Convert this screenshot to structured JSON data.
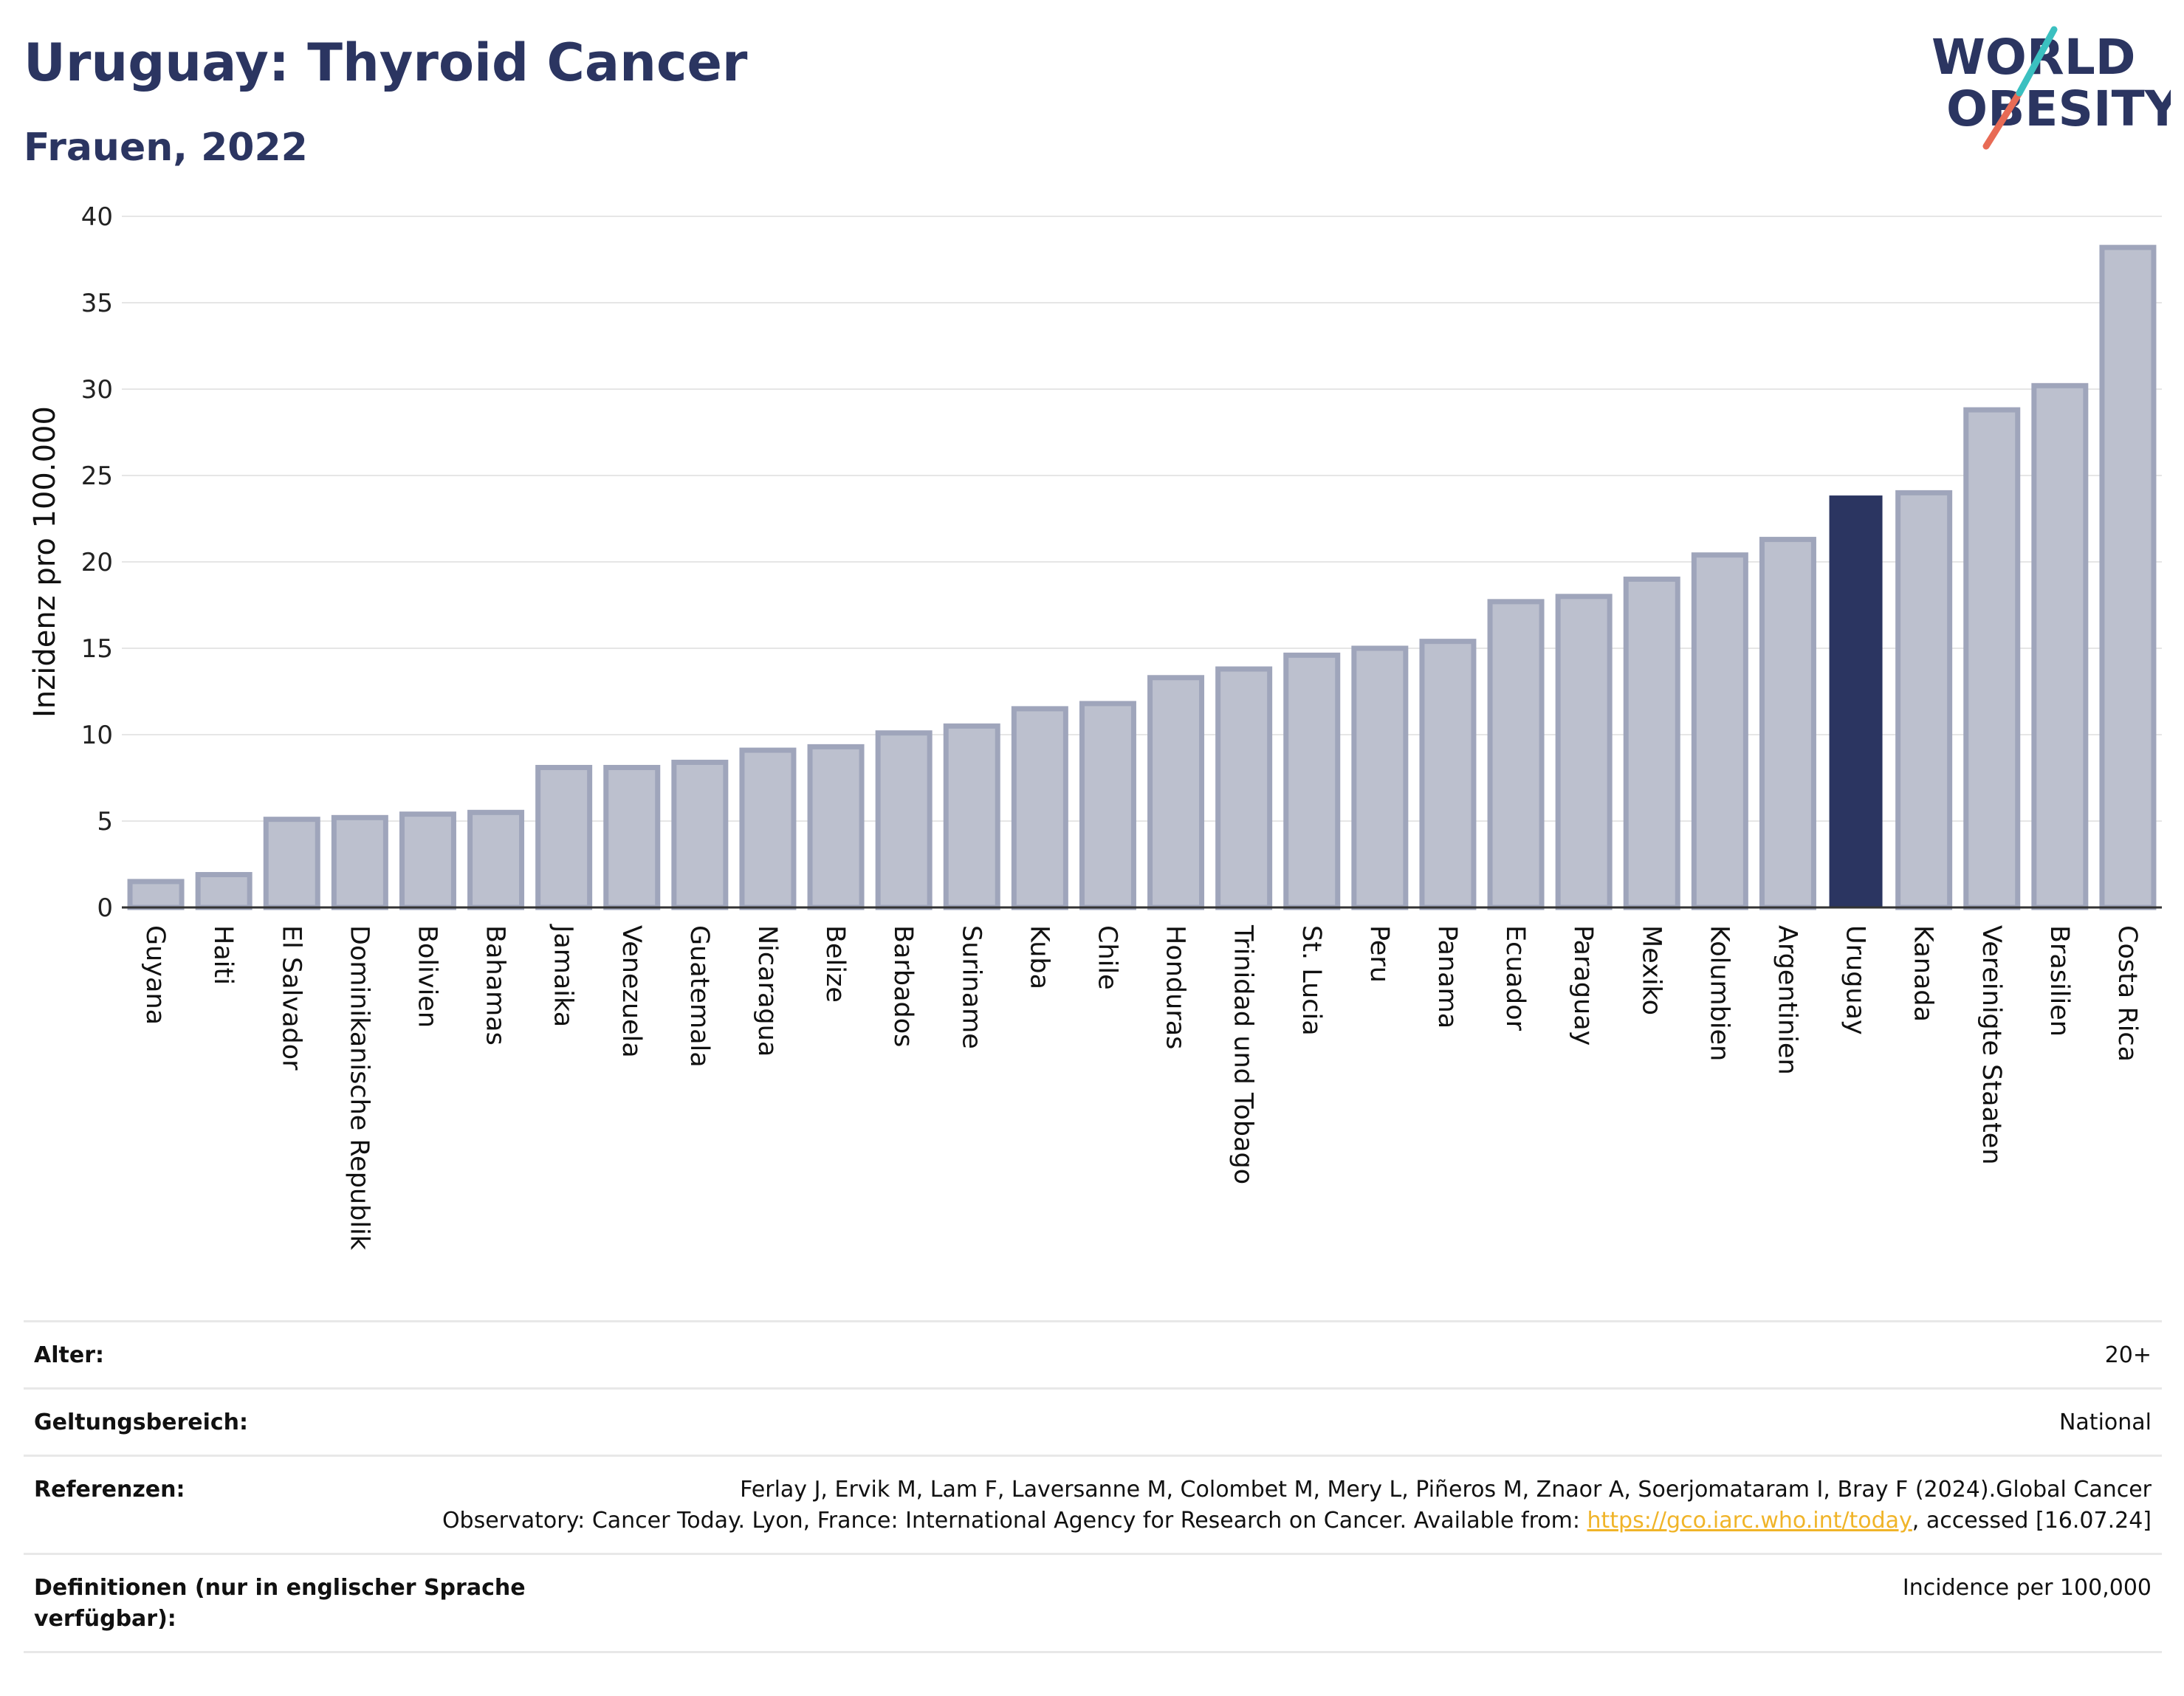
{
  "header": {
    "title": "Uruguay: Thyroid Cancer",
    "subtitle": "Frauen, 2022",
    "logo_line1": "WORLD",
    "logo_line2": "OBESITY"
  },
  "chart_data": {
    "type": "bar",
    "title": "Uruguay: Thyroid Cancer",
    "subtitle": "Frauen, 2022",
    "ylabel": "Inzidenz pro 100.000",
    "xlabel": "",
    "ylim": [
      0,
      40
    ],
    "yticks": [
      0,
      5,
      10,
      15,
      20,
      25,
      30,
      35,
      40
    ],
    "grid": true,
    "highlight": "Uruguay",
    "colors": {
      "bar": "#bcc0ce",
      "bar_border": "#9fa5bb",
      "highlight": "#2b3561"
    },
    "categories": [
      "Guyana",
      "Haiti",
      "El Salvador",
      "Dominikanische Republik",
      "Bolivien",
      "Bahamas",
      "Jamaika",
      "Venezuela",
      "Guatemala",
      "Nicaragua",
      "Belize",
      "Barbados",
      "Suriname",
      "Kuba",
      "Chile",
      "Honduras",
      "Trinidad und Tobago",
      "St. Lucia",
      "Peru",
      "Panama",
      "Ecuador",
      "Paraguay",
      "Mexiko",
      "Kolumbien",
      "Argentinien",
      "Uruguay",
      "Kanada",
      "Vereinigte Staaten",
      "Brasilien",
      "Costa Rica"
    ],
    "values": [
      1.5,
      1.9,
      5.1,
      5.2,
      5.4,
      5.5,
      8.1,
      8.1,
      8.4,
      9.1,
      9.3,
      10.1,
      10.5,
      11.5,
      11.8,
      13.3,
      13.8,
      14.6,
      15.0,
      15.4,
      17.7,
      18.0,
      19.0,
      20.4,
      21.3,
      23.8,
      24.0,
      28.8,
      30.2,
      38.2
    ]
  },
  "meta": {
    "alter_label": "Alter:",
    "alter_value": "20+",
    "scope_label": "Geltungsbereich:",
    "scope_value": "National",
    "ref_label": "Referenzen:",
    "ref_text1": "Ferlay J, Ervik M, Lam F, Laversanne M, Colombet M, Mery L, Piñeros M, Znaor A, Soerjomataram I, Bray F (2024).Global Cancer",
    "ref_text2": "Observatory: Cancer Today. Lyon, France: International Agency for Research on Cancer. Available from:",
    "ref_link": "https://gco.iarc.who.int/today",
    "ref_text3": ", accessed [16.07.24]",
    "def_label": "Definitionen (nur in englischer Sprache verfügbar):",
    "def_value": "Incidence per 100,000"
  }
}
